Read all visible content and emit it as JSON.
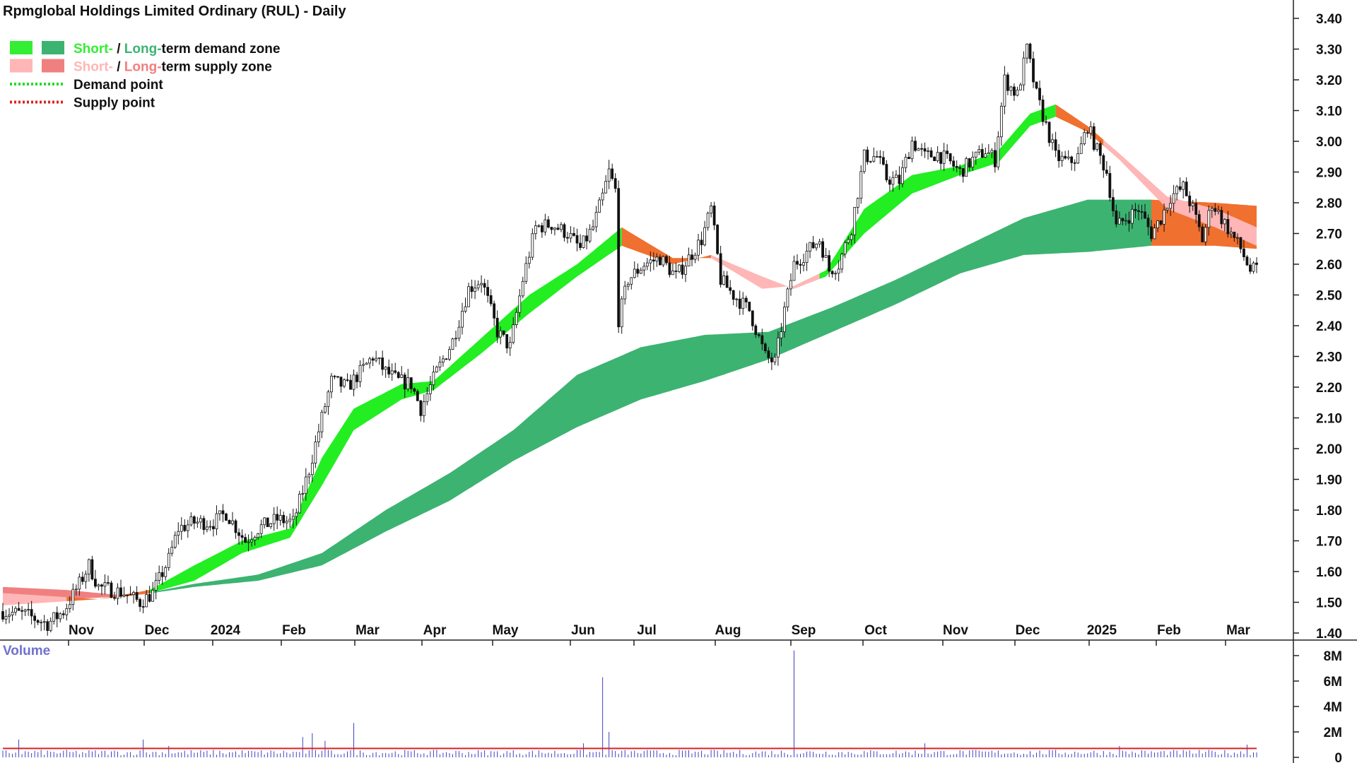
{
  "title": "Rpmglobal Holdings Limited Ordinary (RUL) - Daily",
  "legend": [
    {
      "parts": [
        {
          "text": "Short-",
          "color": "#33ee33"
        },
        {
          "text": " / ",
          "color": "#111111"
        },
        {
          "text": "Long-",
          "color": "#3cb371"
        },
        {
          "text": "term demand zone",
          "color": "#111111"
        }
      ],
      "swatches": [
        "#33ee33",
        "#3cb371"
      ],
      "kind": "box"
    },
    {
      "parts": [
        {
          "text": "Short-",
          "color": "#ffb6b6"
        },
        {
          "text": " / ",
          "color": "#111111"
        },
        {
          "text": "Long-",
          "color": "#f08080"
        },
        {
          "text": "term supply zone",
          "color": "#111111"
        }
      ],
      "swatches": [
        "#ffb6b6",
        "#f08080"
      ],
      "kind": "box"
    },
    {
      "parts": [
        {
          "text": "Demand point",
          "color": "#111111"
        }
      ],
      "swatches": [
        "#22dd22"
      ],
      "kind": "dots"
    },
    {
      "parts": [
        {
          "text": "Supply point",
          "color": "#111111"
        }
      ],
      "swatches": [
        "#dd2222"
      ],
      "kind": "dots"
    }
  ],
  "colors": {
    "short_demand": "#22ee22",
    "long_demand": "#3cb371",
    "short_supply": "#ffb6b6",
    "long_supply": "#f08080",
    "overlap": "#f07030",
    "candle": "#111111",
    "volume_bar": "#4040c0",
    "volume_avg": "#e02020",
    "volume_label": "#7070d0"
  },
  "chart_data": {
    "type": "candlestick",
    "x_ticks": [
      "Nov",
      "Dec",
      "2024",
      "Feb",
      "Mar",
      "Apr",
      "May",
      "Jun",
      "Jul",
      "Aug",
      "Sep",
      "Oct",
      "Nov",
      "Dec",
      "2025",
      "Feb",
      "Mar"
    ],
    "y_ticks": [
      "3.40",
      "3.30",
      "3.20",
      "3.10",
      "3.00",
      "2.90",
      "2.80",
      "2.70",
      "2.60",
      "2.50",
      "2.40",
      "2.30",
      "2.20",
      "2.10",
      "2.00",
      "1.90",
      "1.80",
      "1.70",
      "1.60",
      "1.50",
      "1.40"
    ],
    "ylim": [
      1.36,
      3.42
    ],
    "price_path": [
      [
        0,
        1.47
      ],
      [
        7,
        1.46
      ],
      [
        14,
        1.43
      ],
      [
        19,
        1.47
      ],
      [
        24,
        1.56
      ],
      [
        27,
        1.62
      ],
      [
        30,
        1.55
      ],
      [
        38,
        1.53
      ],
      [
        43,
        1.5
      ],
      [
        47,
        1.53
      ],
      [
        52,
        1.64
      ],
      [
        55,
        1.74
      ],
      [
        60,
        1.76
      ],
      [
        66,
        1.76
      ],
      [
        70,
        1.79
      ],
      [
        76,
        1.7
      ],
      [
        80,
        1.74
      ],
      [
        86,
        1.77
      ],
      [
        91,
        1.76
      ],
      [
        96,
        1.93
      ],
      [
        100,
        2.1
      ],
      [
        103,
        2.22
      ],
      [
        108,
        2.2
      ],
      [
        113,
        2.26
      ],
      [
        116,
        2.3
      ],
      [
        120,
        2.25
      ],
      [
        124,
        2.22
      ],
      [
        128,
        2.21
      ],
      [
        131,
        2.13
      ],
      [
        136,
        2.25
      ],
      [
        141,
        2.35
      ],
      [
        146,
        2.52
      ],
      [
        150,
        2.55
      ],
      [
        155,
        2.38
      ],
      [
        159,
        2.33
      ],
      [
        163,
        2.55
      ],
      [
        167,
        2.72
      ],
      [
        172,
        2.73
      ],
      [
        177,
        2.7
      ],
      [
        181,
        2.65
      ],
      [
        185,
        2.72
      ],
      [
        188,
        2.82
      ],
      [
        190,
        2.9
      ],
      [
        192,
        2.84
      ],
      [
        193,
        2.42
      ],
      [
        196,
        2.55
      ],
      [
        201,
        2.6
      ],
      [
        206,
        2.62
      ],
      [
        211,
        2.56
      ],
      [
        215,
        2.62
      ],
      [
        219,
        2.68
      ],
      [
        222,
        2.78
      ],
      [
        225,
        2.55
      ],
      [
        229,
        2.5
      ],
      [
        234,
        2.45
      ],
      [
        239,
        2.3
      ],
      [
        242,
        2.28
      ],
      [
        245,
        2.45
      ],
      [
        248,
        2.6
      ],
      [
        252,
        2.64
      ],
      [
        256,
        2.68
      ],
      [
        259,
        2.58
      ],
      [
        262,
        2.6
      ],
      [
        266,
        2.72
      ],
      [
        270,
        2.95
      ],
      [
        274,
        2.95
      ],
      [
        277,
        2.88
      ],
      [
        281,
        2.87
      ],
      [
        285,
        3.0
      ],
      [
        289,
        2.95
      ],
      [
        293,
        2.96
      ],
      [
        297,
        2.93
      ],
      [
        300,
        2.9
      ],
      [
        304,
        2.94
      ],
      [
        308,
        2.97
      ],
      [
        311,
        2.94
      ],
      [
        314,
        3.2
      ],
      [
        318,
        3.15
      ],
      [
        321,
        3.3
      ],
      [
        324,
        3.15
      ],
      [
        327,
        3.05
      ],
      [
        330,
        2.95
      ],
      [
        334,
        2.93
      ],
      [
        337,
        2.95
      ],
      [
        340,
        3.05
      ],
      [
        343,
        2.97
      ],
      [
        346,
        2.9
      ],
      [
        349,
        2.72
      ],
      [
        352,
        2.75
      ],
      [
        356,
        2.78
      ],
      [
        360,
        2.7
      ],
      [
        363,
        2.75
      ],
      [
        366,
        2.82
      ],
      [
        370,
        2.85
      ],
      [
        373,
        2.78
      ],
      [
        376,
        2.68
      ],
      [
        379,
        2.8
      ],
      [
        382,
        2.75
      ],
      [
        385,
        2.7
      ],
      [
        388,
        2.65
      ],
      [
        391,
        2.58
      ],
      [
        393,
        2.58
      ]
    ],
    "short_band_upper": [
      [
        0,
        1.53
      ],
      [
        30,
        1.51
      ],
      [
        46,
        1.54
      ],
      [
        60,
        1.62
      ],
      [
        75,
        1.7
      ],
      [
        90,
        1.74
      ],
      [
        100,
        1.97
      ],
      [
        110,
        2.13
      ],
      [
        125,
        2.21
      ],
      [
        135,
        2.22
      ],
      [
        150,
        2.36
      ],
      [
        165,
        2.5
      ],
      [
        180,
        2.6
      ],
      [
        194,
        2.72
      ],
      [
        210,
        2.62
      ],
      [
        222,
        2.62
      ],
      [
        238,
        2.52
      ],
      [
        248,
        2.53
      ],
      [
        258,
        2.58
      ],
      [
        270,
        2.78
      ],
      [
        285,
        2.89
      ],
      [
        300,
        2.92
      ],
      [
        312,
        2.97
      ],
      [
        322,
        3.09
      ],
      [
        330,
        3.12
      ],
      [
        340,
        3.05
      ],
      [
        350,
        2.96
      ],
      [
        365,
        2.82
      ],
      [
        380,
        2.78
      ],
      [
        393,
        2.72
      ]
    ],
    "short_band_lower": [
      [
        0,
        1.49
      ],
      [
        30,
        1.51
      ],
      [
        46,
        1.53
      ],
      [
        60,
        1.57
      ],
      [
        75,
        1.66
      ],
      [
        90,
        1.71
      ],
      [
        100,
        1.88
      ],
      [
        110,
        2.06
      ],
      [
        125,
        2.16
      ],
      [
        135,
        2.19
      ],
      [
        150,
        2.31
      ],
      [
        165,
        2.44
      ],
      [
        180,
        2.56
      ],
      [
        194,
        2.66
      ],
      [
        210,
        2.6
      ],
      [
        222,
        2.63
      ],
      [
        238,
        2.56
      ],
      [
        248,
        2.52
      ],
      [
        258,
        2.56
      ],
      [
        270,
        2.7
      ],
      [
        285,
        2.83
      ],
      [
        300,
        2.89
      ],
      [
        312,
        2.93
      ],
      [
        322,
        3.05
      ],
      [
        330,
        3.08
      ],
      [
        340,
        3.03
      ],
      [
        350,
        2.94
      ],
      [
        365,
        2.78
      ],
      [
        380,
        2.72
      ],
      [
        393,
        2.66
      ]
    ],
    "long_band_upper": [
      [
        0,
        1.55
      ],
      [
        20,
        1.54
      ],
      [
        40,
        1.52
      ],
      [
        60,
        1.56
      ],
      [
        80,
        1.59
      ],
      [
        100,
        1.66
      ],
      [
        120,
        1.8
      ],
      [
        140,
        1.92
      ],
      [
        160,
        2.06
      ],
      [
        180,
        2.24
      ],
      [
        200,
        2.33
      ],
      [
        220,
        2.37
      ],
      [
        240,
        2.38
      ],
      [
        260,
        2.46
      ],
      [
        280,
        2.55
      ],
      [
        300,
        2.65
      ],
      [
        320,
        2.75
      ],
      [
        340,
        2.81
      ],
      [
        360,
        2.81
      ],
      [
        380,
        2.8
      ],
      [
        393,
        2.79
      ]
    ],
    "long_band_lower": [
      [
        0,
        1.52
      ],
      [
        20,
        1.51
      ],
      [
        40,
        1.52
      ],
      [
        60,
        1.55
      ],
      [
        80,
        1.57
      ],
      [
        100,
        1.62
      ],
      [
        120,
        1.73
      ],
      [
        140,
        1.83
      ],
      [
        160,
        1.96
      ],
      [
        180,
        2.07
      ],
      [
        200,
        2.16
      ],
      [
        220,
        2.22
      ],
      [
        240,
        2.29
      ],
      [
        260,
        2.38
      ],
      [
        280,
        2.47
      ],
      [
        300,
        2.57
      ],
      [
        320,
        2.63
      ],
      [
        340,
        2.64
      ],
      [
        360,
        2.66
      ],
      [
        380,
        2.66
      ],
      [
        393,
        2.65
      ]
    ],
    "volume": {
      "label": "Volume",
      "y_ticks": [
        "8M",
        "6M",
        "4M",
        "2M",
        "0"
      ],
      "ylim": [
        0,
        9
      ],
      "spikes": [
        [
          5,
          1.4
        ],
        [
          44,
          1.4
        ],
        [
          52,
          0.9
        ],
        [
          94,
          1.6
        ],
        [
          97,
          1.9
        ],
        [
          101,
          1.3
        ],
        [
          110,
          2.7
        ],
        [
          182,
          1.1
        ],
        [
          188,
          6.3
        ],
        [
          190,
          2.0
        ],
        [
          248,
          8.4
        ],
        [
          289,
          1.1
        ],
        [
          350,
          0.9
        ],
        [
          390,
          1.0
        ]
      ],
      "baseline": 0.4,
      "average": 0.7
    }
  }
}
